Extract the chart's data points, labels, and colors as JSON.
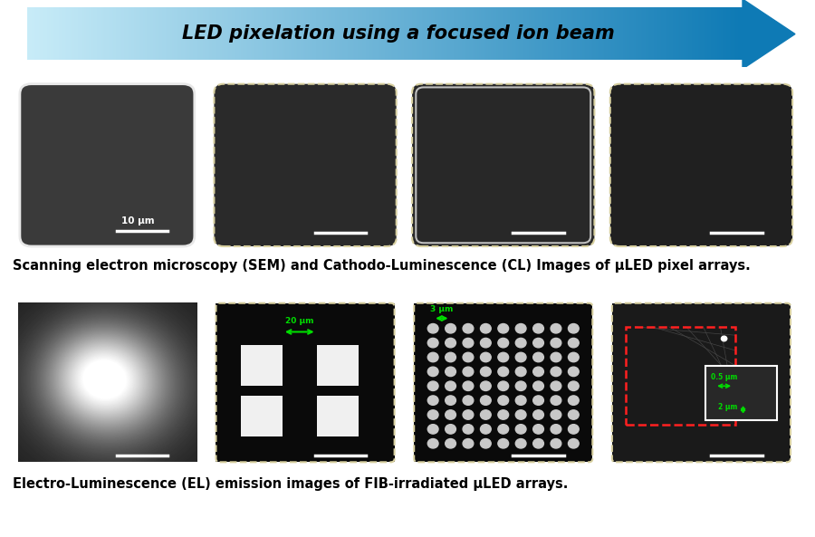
{
  "title": "LED pixelation using a focused ion beam",
  "caption_top": "Scanning electron microscopy (SEM) and Cathodo-Luminescence (CL) Images of μLED pixel arrays.",
  "caption_bottom": "Electro-Luminescence (EL) emission images of FIB-irradiated μLED arrays.",
  "bg_color": "#ffffff",
  "fig_width": 9.0,
  "fig_height": 5.93,
  "scale_bar_label": "10 μm",
  "annotation_20um": "20 μm",
  "annotation_3um": "3 μm",
  "annotation_05um": "0.5 μm",
  "annotation_2um": "2 μm",
  "title_fontsize": 15,
  "caption_fontsize": 10.5,
  "arrow_left_color": "#c8ecf8",
  "arrow_right_color": "#0e7ab5"
}
